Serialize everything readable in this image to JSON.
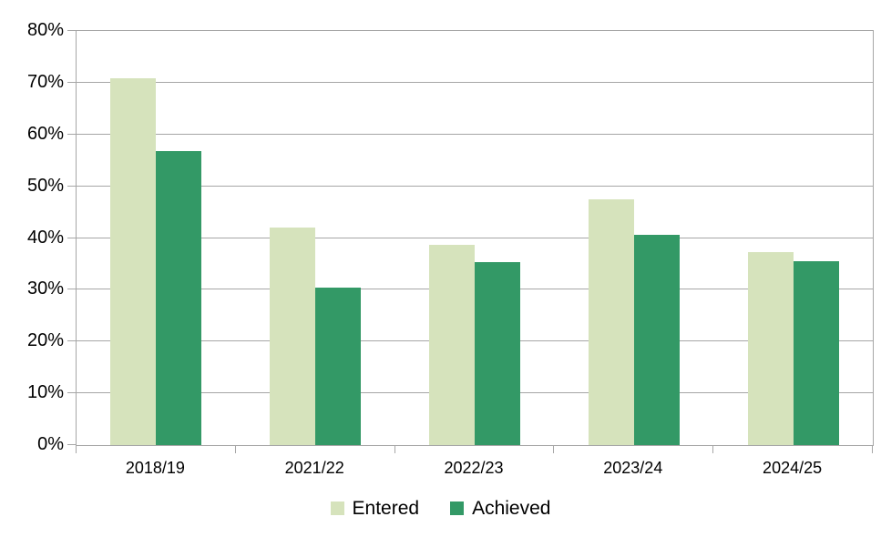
{
  "chart_data": {
    "type": "bar",
    "title": "",
    "xlabel": "",
    "ylabel": "",
    "categories": [
      "2018/19",
      "2021/22",
      "2022/23",
      "2023/24",
      "2024/25"
    ],
    "series": [
      {
        "name": "Entered",
        "color": "#d6e3bc",
        "values": [
          70.8,
          42.1,
          38.6,
          47.4,
          37.2
        ]
      },
      {
        "name": "Achieved",
        "color": "#339966",
        "values": [
          56.8,
          30.5,
          35.3,
          40.6,
          35.6
        ]
      }
    ],
    "ylim": [
      0,
      80
    ],
    "ytick_step": 10,
    "ytick_labels": [
      "0%",
      "10%",
      "20%",
      "30%",
      "40%",
      "50%",
      "60%",
      "70%",
      "80%"
    ],
    "grid": true,
    "legend_position": "bottom-center"
  },
  "colors": {
    "background": "#ffffff",
    "gridline": "#a6a6a6",
    "axis": "#a6a6a6",
    "text": "#000000",
    "series_entered": "#d6e3bc",
    "series_achieved": "#339966"
  }
}
